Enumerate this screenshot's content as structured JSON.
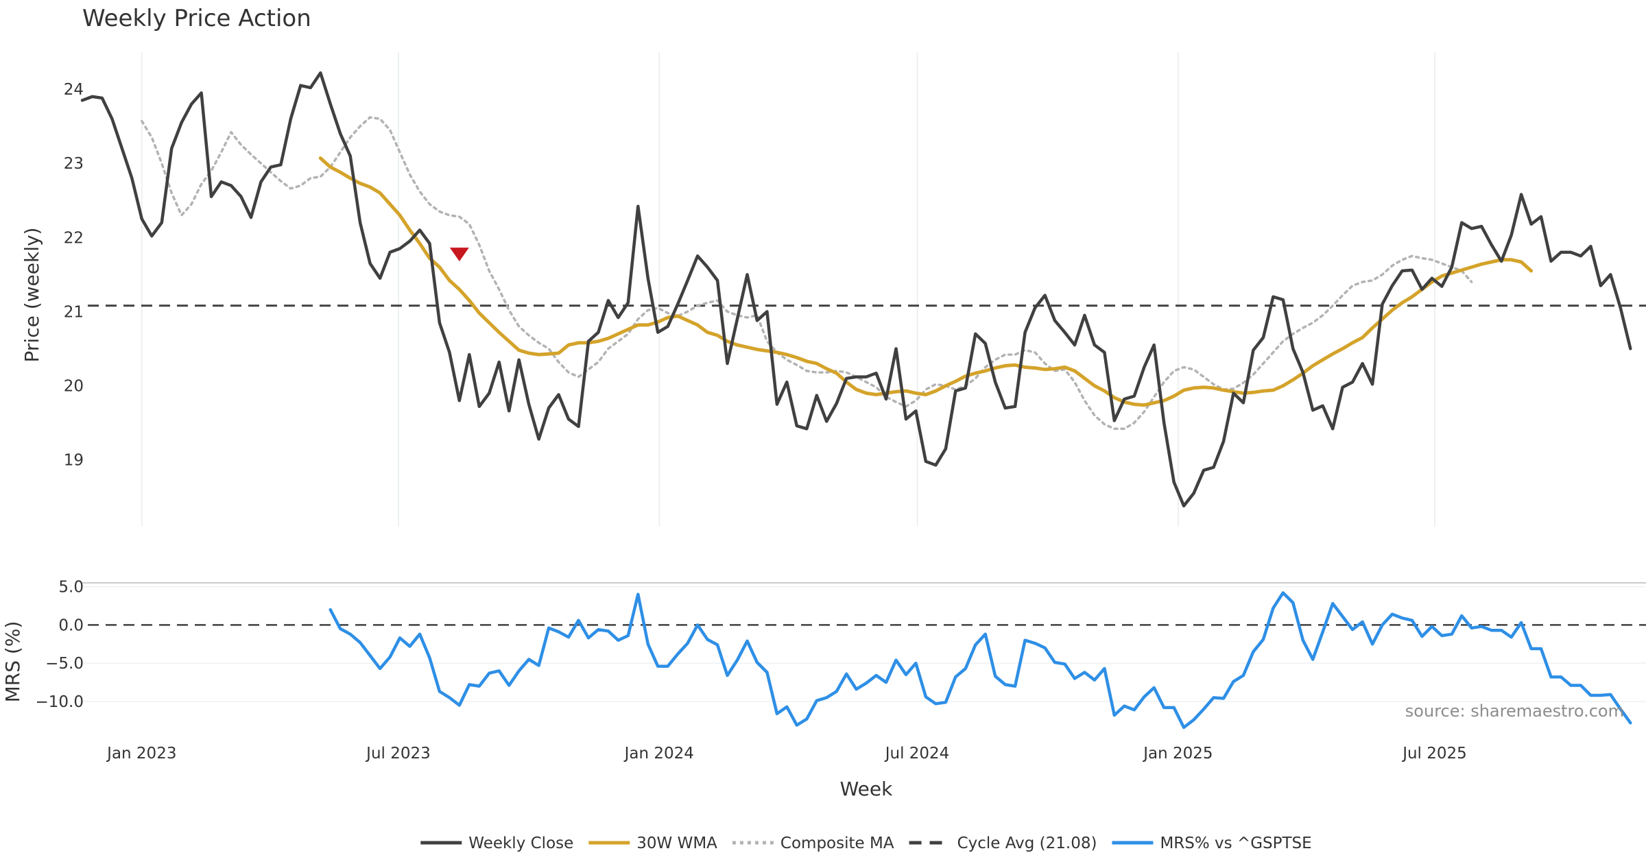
{
  "chart_data": [
    {
      "type": "line",
      "title": "Weekly Price Action",
      "xlabel": "",
      "ylabel": "Price (weekly)",
      "ylim": [
        18.1,
        24.5
      ],
      "yticks": [
        19,
        20,
        21,
        22,
        23,
        24
      ],
      "x_range": [
        "2022-11-20",
        "2025-11-27"
      ],
      "gridlines_x": [
        "2023-01-01",
        "2023-07-01",
        "2024-01-01",
        "2024-07-01",
        "2025-01-01",
        "2025-07-01"
      ],
      "series": [
        {
          "name": "Weekly Close",
          "color": "#404040",
          "style": "solid",
          "start": "2022-11-20",
          "step_days": 7,
          "values": [
            23.85,
            23.9,
            23.88,
            23.6,
            23.2,
            22.8,
            22.25,
            22.02,
            22.2,
            23.2,
            23.55,
            23.8,
            23.95,
            22.55,
            22.75,
            22.7,
            22.55,
            22.27,
            22.75,
            22.95,
            22.98,
            23.6,
            24.05,
            24.02,
            24.22,
            23.8,
            23.4,
            23.1,
            22.2,
            21.65,
            21.45,
            21.8,
            21.85,
            21.95,
            22.1,
            21.92,
            20.85,
            20.45,
            19.8,
            20.42,
            19.72,
            19.9,
            20.32,
            19.66,
            20.35,
            19.75,
            19.28,
            19.7,
            19.88,
            19.55,
            19.45,
            20.6,
            20.72,
            21.15,
            20.92,
            21.12,
            22.42,
            21.45,
            20.72,
            20.8,
            21.1,
            21.42,
            21.75,
            21.6,
            21.42,
            20.3,
            20.9,
            21.5,
            20.88,
            21.0,
            19.75,
            20.05,
            19.46,
            19.42,
            19.87,
            19.52,
            19.76,
            20.1,
            20.12,
            20.12,
            20.17,
            19.82,
            20.5,
            19.55,
            19.66,
            18.98,
            18.93,
            19.15,
            19.93,
            19.97,
            20.7,
            20.57,
            20.05,
            19.7,
            19.72,
            20.72,
            21.05,
            21.22,
            20.88,
            20.72,
            20.55,
            20.95,
            20.55,
            20.45,
            19.53,
            19.82,
            19.86,
            20.25,
            20.55,
            19.5,
            18.7,
            18.38,
            18.55,
            18.86,
            18.9,
            19.25,
            19.9,
            19.77,
            20.48,
            20.65,
            21.2,
            21.16,
            20.5,
            20.18,
            19.67,
            19.73,
            19.42,
            19.98,
            20.05,
            20.3,
            20.02,
            21.1,
            21.35,
            21.55,
            21.56,
            21.3,
            21.45,
            21.34,
            21.6,
            22.2,
            22.12,
            22.15,
            21.9,
            21.68,
            22.03,
            22.58,
            22.18,
            22.28,
            21.68,
            21.8,
            21.8,
            21.75,
            21.88,
            21.35,
            21.5,
            21.05,
            20.5
          ]
        },
        {
          "name": "30W WMA",
          "color": "#d4a32a",
          "style": "solid",
          "start": "2023-05-07",
          "step_days": 7,
          "values": [
            23.07,
            22.95,
            22.88,
            22.8,
            22.73,
            22.68,
            22.6,
            22.45,
            22.3,
            22.1,
            21.92,
            21.72,
            21.6,
            21.42,
            21.3,
            21.15,
            20.98,
            20.85,
            20.72,
            20.6,
            20.48,
            20.44,
            20.42,
            20.43,
            20.44,
            20.55,
            20.58,
            20.58,
            20.6,
            20.64,
            20.7,
            20.76,
            20.82,
            20.82,
            20.86,
            20.92,
            20.94,
            20.88,
            20.82,
            20.72,
            20.68,
            20.6,
            20.55,
            20.52,
            20.49,
            20.47,
            20.45,
            20.42,
            20.38,
            20.33,
            20.3,
            20.23,
            20.17,
            20.05,
            19.95,
            19.9,
            19.88,
            19.9,
            19.92,
            19.93,
            19.9,
            19.88,
            19.93,
            20.0,
            20.06,
            20.13,
            20.17,
            20.2,
            20.24,
            20.27,
            20.28,
            20.25,
            20.24,
            20.22,
            20.23,
            20.25,
            20.2,
            20.1,
            20.0,
            19.93,
            19.84,
            19.78,
            19.75,
            19.74,
            19.77,
            19.8,
            19.86,
            19.94,
            19.97,
            19.98,
            19.97,
            19.94,
            19.92,
            19.9,
            19.91,
            19.93,
            19.94,
            20.0,
            20.08,
            20.17,
            20.27,
            20.35,
            20.43,
            20.5,
            20.58,
            20.65,
            20.78,
            20.9,
            21.02,
            21.12,
            21.2,
            21.3,
            21.4,
            21.48,
            21.52,
            21.56,
            21.6,
            21.64,
            21.67,
            21.7,
            21.7,
            21.67,
            21.55
          ]
        },
        {
          "name": "Composite MA",
          "color": "#b3b3b3",
          "style": "dotted",
          "start": "2023-01-01",
          "step_days": 7,
          "values": [
            23.57,
            23.35,
            23.0,
            22.6,
            22.3,
            22.45,
            22.72,
            22.9,
            23.15,
            23.42,
            23.25,
            23.12,
            23.0,
            22.88,
            22.76,
            22.66,
            22.7,
            22.8,
            22.82,
            22.95,
            23.15,
            23.35,
            23.5,
            23.62,
            23.6,
            23.45,
            23.15,
            22.85,
            22.62,
            22.45,
            22.35,
            22.3,
            22.28,
            22.18,
            21.9,
            21.55,
            21.3,
            21.02,
            20.8,
            20.68,
            20.58,
            20.5,
            20.32,
            20.18,
            20.12,
            20.22,
            20.32,
            20.5,
            20.6,
            20.7,
            20.9,
            21.02,
            21.05,
            20.98,
            20.94,
            21.0,
            21.08,
            21.12,
            21.15,
            21.0,
            20.95,
            20.92,
            20.95,
            20.6,
            20.45,
            20.35,
            20.28,
            20.2,
            20.18,
            20.18,
            20.2,
            20.18,
            20.12,
            20.05,
            19.98,
            19.85,
            19.78,
            19.72,
            19.8,
            19.95,
            20.02,
            20.0,
            19.95,
            20.0,
            20.1,
            20.25,
            20.35,
            20.42,
            20.42,
            20.48,
            20.45,
            20.3,
            20.2,
            20.22,
            20.05,
            19.8,
            19.6,
            19.48,
            19.42,
            19.42,
            19.5,
            19.65,
            19.85,
            20.05,
            20.2,
            20.25,
            20.22,
            20.12,
            20.02,
            19.95,
            19.96,
            20.04,
            20.15,
            20.3,
            20.45,
            20.6,
            20.7,
            20.78,
            20.85,
            20.95,
            21.08,
            21.22,
            21.35,
            21.4,
            21.42,
            21.5,
            21.62,
            21.7,
            21.75,
            21.72,
            21.7,
            21.65,
            21.6,
            21.55,
            21.4
          ]
        }
      ],
      "reference_lines": [
        {
          "name": "Cycle Avg (21.08)",
          "value": 21.08,
          "color": "#404040",
          "style": "dashed"
        }
      ],
      "annotations": [
        {
          "type": "marker",
          "shape": "down-triangle",
          "date": "2023-08-13",
          "value": 21.78,
          "color": "#c8181f"
        }
      ]
    },
    {
      "type": "line",
      "title": "",
      "xlabel": "Week",
      "ylabel": "MRS (%)",
      "ylim": [
        -13.5,
        5.5
      ],
      "yticks": [
        5.0,
        0.0,
        -5.0,
        -10.0
      ],
      "ytick_labels": [
        "5.0",
        "0.0",
        "−5.0",
        "−10.0"
      ],
      "x_range": [
        "2022-11-20",
        "2025-11-27"
      ],
      "xticks": [
        "2023-01-01",
        "2023-07-01",
        "2024-01-01",
        "2024-07-01",
        "2025-01-01",
        "2025-07-01"
      ],
      "xtick_labels": [
        "Jan 2023",
        "Jul 2023",
        "Jan 2024",
        "Jul 2024",
        "Jan 2025",
        "Jul 2025"
      ],
      "series": [
        {
          "name": "MRS% vs ^GSPTSE",
          "color": "#2e8fe6",
          "style": "solid",
          "start": "2023-05-14",
          "step_days": 7,
          "values": [
            2.0,
            -0.5,
            -1.2,
            -2.3,
            -4.0,
            -5.7,
            -4.2,
            -1.7,
            -2.8,
            -1.2,
            -4.3,
            -8.7,
            -9.5,
            -10.5,
            -7.8,
            -8.0,
            -6.3,
            -6.0,
            -7.9,
            -6.0,
            -4.5,
            -5.3,
            -0.4,
            -0.9,
            -1.6,
            0.6,
            -1.7,
            -0.6,
            -0.8,
            -2.0,
            -1.4,
            4.0,
            -2.5,
            -5.4,
            -5.4,
            -3.8,
            -2.4,
            0.0,
            -1.9,
            -2.6,
            -6.6,
            -4.6,
            -2.1,
            -4.9,
            -6.2,
            -11.6,
            -10.7,
            -13.1,
            -12.3,
            -9.9,
            -9.5,
            -8.7,
            -6.4,
            -8.4,
            -7.6,
            -6.6,
            -7.5,
            -4.6,
            -6.5,
            -5.0,
            -9.4,
            -10.3,
            -10.1,
            -6.8,
            -5.7,
            -2.6,
            -1.2,
            -6.7,
            -7.8,
            -8.0,
            -2.0,
            -2.4,
            -3.0,
            -4.9,
            -5.1,
            -7.0,
            -6.2,
            -7.2,
            -5.7,
            -11.8,
            -10.6,
            -11.1,
            -9.4,
            -8.2,
            -10.8,
            -10.8,
            -13.4,
            -12.4,
            -11.0,
            -9.5,
            -9.6,
            -7.4,
            -6.6,
            -3.5,
            -1.9,
            2.2,
            4.2,
            2.9,
            -2.0,
            -4.5,
            -0.9,
            2.8,
            1.1,
            -0.6,
            0.4,
            -2.5,
            0.0,
            1.4,
            0.9,
            0.6,
            -1.5,
            -0.2,
            -1.4,
            -1.2,
            1.2,
            -0.4,
            -0.2,
            -0.7,
            -0.7,
            -1.6,
            0.3,
            -3.1,
            -3.1,
            -6.8,
            -6.8,
            -7.9,
            -7.9,
            -9.2,
            -9.2,
            -9.1,
            -11.0,
            -12.8
          ]
        }
      ],
      "reference_lines": [
        {
          "name": "zero",
          "value": 0.0,
          "color": "#404040",
          "style": "dashed"
        }
      ]
    }
  ],
  "labels": {
    "title": "Weekly Price Action",
    "price_ylabel": "Price (weekly)",
    "mrs_ylabel": "MRS (%)",
    "xlabel": "Week",
    "source": "source: sharemaestro.com"
  },
  "legend": {
    "placement": "bottom-center",
    "entries": [
      {
        "label": "Weekly Close",
        "color": "#404040",
        "style": "solid"
      },
      {
        "label": "30W WMA",
        "color": "#d4a32a",
        "style": "solid"
      },
      {
        "label": "Composite MA",
        "color": "#b3b3b3",
        "style": "dotted"
      },
      {
        "label": "Cycle Avg (21.08)",
        "color": "#404040",
        "style": "dashed"
      },
      {
        "label": "MRS% vs ^GSPTSE",
        "color": "#2e8fe6",
        "style": "solid"
      }
    ]
  }
}
